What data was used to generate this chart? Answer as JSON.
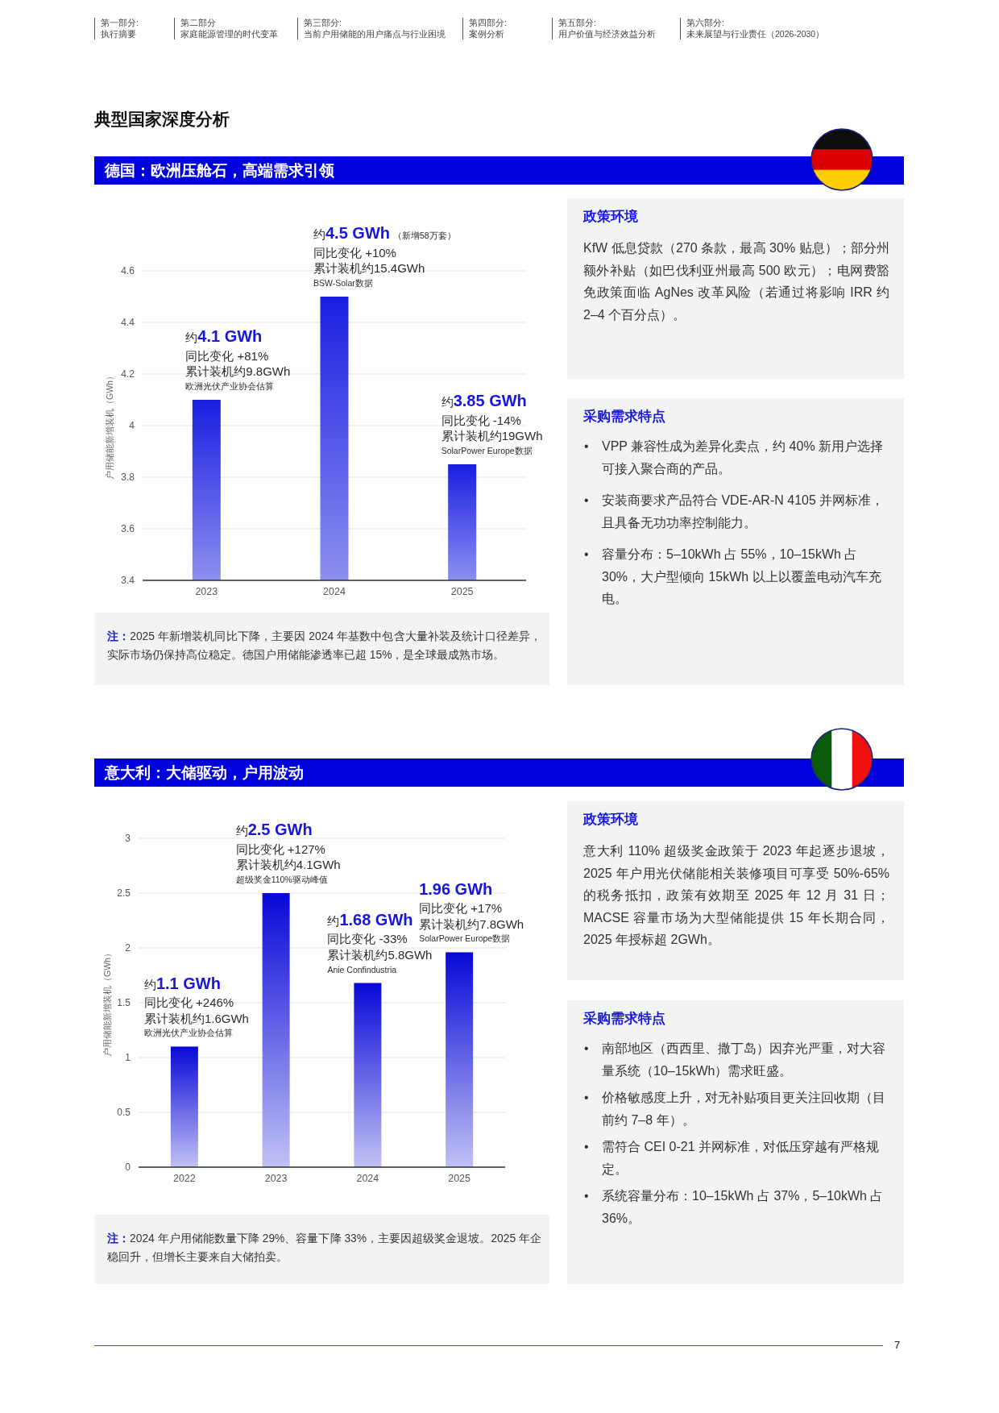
{
  "chart_data": [
    {
      "type": "other",
      "title": "典型国家深度分析",
      "annotations": [
        "第一部分:",
        "执行摘要",
        "第二部分",
        "家庭能源管理的时代变革",
        "第三部分:",
        "当前户用储能的用户痛点与行业困境",
        "第四部分:",
        "案例分析",
        "第五部分:",
        "用户价值与经济效益分析",
        "第六部分:",
        "未来展望与行业责任（2026-2030）"
      ]
    },
    {
      "type": "bar",
      "title": "德国：欧洲压舱石，高端需求引领",
      "ylabel": "户用储能新增装机（GWh）",
      "categories": [
        "2023",
        "2024",
        "2025"
      ],
      "values": [
        4.1,
        4.5,
        3.85
      ],
      "color": "#1a1ee0",
      "ylim": [
        3.4,
        4.6
      ],
      "yticks": [
        3.4,
        3.6,
        3.8,
        4,
        4.2,
        4.4,
        4.6
      ],
      "grid": "y",
      "annotations": [
        "约**4.1 GWh**",
        "同比变化 +81%",
        "累计装机约9.8GWh",
        "欧洲光伏产业协会估算",
        "约**4.5 GWh**（新增58万套）",
        "同比变化 +10%",
        "累计装机约15.4GWh",
        "BSW-Solar数据",
        "约**3.85 GWh**",
        "同比变化 -14%",
        "累计装机约19GWh",
        "SolarPower Europe数据",
        "**注：**2025 年新增装机同比下降，主要因 2024 年基数中包含大量补装及统计口径差异，实际市场仍保持高位稳定。德国户用储能渗透率已超 15%，是全球最成熟市场。"
      ]
    },
    {
      "type": "other",
      "title": "政策环境",
      "annotations": [
        "KfW 低息贷款（270 条款，最高 30% 贴息）；部分州额外补贴（如巴伐利亚州最高 500 欧元）；电网费豁免政策面临 AgNes 改革风险（若通过将影响 IRR 约 2–4 个百分点）。"
      ]
    },
    {
      "type": "other",
      "title": "采购需求特点",
      "annotations": [
        "•",
        "VPP 兼容性成为差异化卖点，约 40% 新用户选择可接入聚合商的产品。",
        "•",
        "安装商要求产品符合 VDE-AR-N 4105 并网标准，且具备无功功率控制能力。",
        "•",
        "容量分布：5–10kWh 占 55%，10–15kWh 占 30%，大户型倾向 15kWh 以上以覆盖电动汽车充电。"
      ]
    },
    {
      "type": "bar",
      "title": "意大利：大储驱动，户用波动",
      "ylabel": "户用储能新增装机（GWh）",
      "categories": [
        "2022",
        "2023",
        "2024",
        "2025"
      ],
      "values": [
        1.1,
        2.5,
        1.68,
        1.96
      ],
      "color": "#0808d8",
      "ylim": [
        0,
        3
      ],
      "yticks": [
        0,
        0.5,
        1,
        1.5,
        2,
        2.5,
        3
      ],
      "grid": "y",
      "annotations": [
        "约**1.1 GWh**",
        "同比变化 +246%",
        "累计装机约1.6GWh",
        "欧洲光伏产业协会估算",
        "约**2.5 GWh**",
        "同比变化 +127%",
        "累计装机约4.1GWh",
        "超级奖金110%驱动峰值",
        "约**1.68 GWh**",
        "同比变化 -33%",
        "累计装机约5.8GWh",
        "Anie Confindustria",
        "**1.96 GWh**",
        "同比变化 +17%",
        "累计装机约7.8GWh",
        "SolarPower Europe数据",
        "**注：**2024 年户用储能数量下降 29%、容量下降 33%，主要因超级奖金退坡。2025 年企稳回升，但增长主要来自大储拍卖。"
      ]
    },
    {
      "type": "other",
      "title": "政策环境",
      "annotations": [
        "意大利 110% 超级奖金政策于 2023 年起逐步退坡，2025 年户用光伏储能相关装修项目可享受 50%-65% 的税务抵扣，政策有效期至 2025 年 12 月 31 日；MACSE 容量市场为大型储能提供 15 年长期合同，2025 年授标超 2GWh。"
      ]
    },
    {
      "type": "other",
      "title": "采购需求特点",
      "annotations": [
        "•",
        "南部地区（西西里、撒丁岛）因弃光严重，对大容量系统（10–15kWh）需求旺盛。",
        "•",
        "价格敏感度上升，对无补贴项目更关注回收期（目前约 7–8 年）。",
        "•",
        "需符合 CEI 0-21 并网标准，对低压穿越有严格规定。",
        "•",
        "系统容量分布：10–15kWh 占 37%，5–10kWh 占 36%。"
      ]
    },
    {
      "type": "other",
      "annotations": [
        "7"
      ]
    }
  ]
}
